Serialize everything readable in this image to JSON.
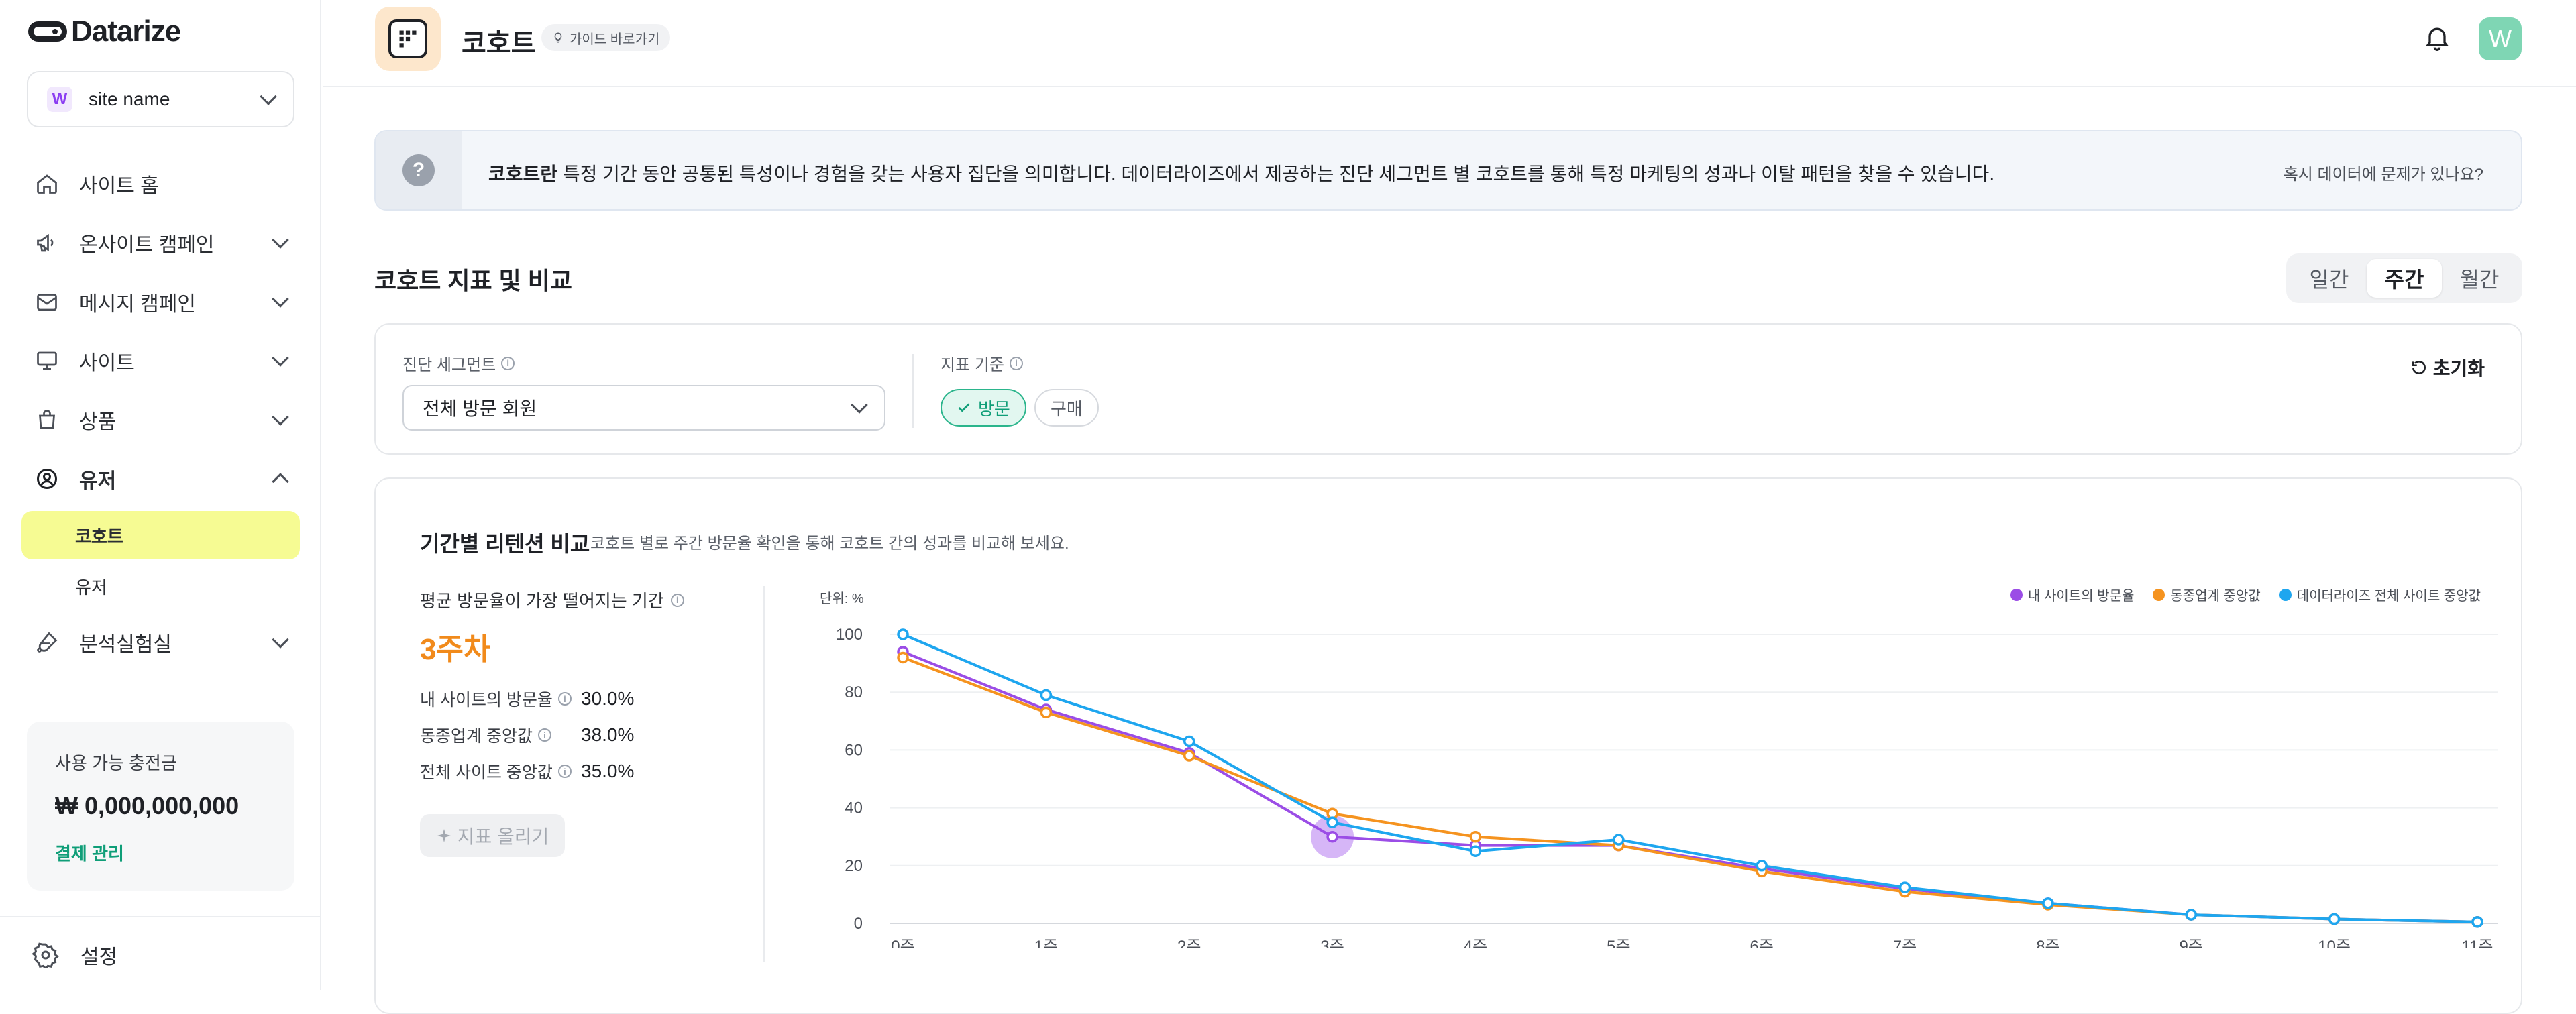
{
  "brand": {
    "name": "Datarize"
  },
  "site_select": {
    "badge": "W",
    "name": "site name"
  },
  "nav": [
    {
      "label": "사이트 홈",
      "icon": "home-icon"
    },
    {
      "label": "온사이트 캠페인",
      "icon": "megaphone-icon"
    },
    {
      "label": "메시지 캠페인",
      "icon": "mail-icon"
    },
    {
      "label": "사이트",
      "icon": "monitor-icon"
    },
    {
      "label": "상품",
      "icon": "bag-icon"
    },
    {
      "label": "유저",
      "icon": "user-circle-icon"
    },
    {
      "label": "분석실험실",
      "icon": "flask-icon"
    }
  ],
  "nav_sub": [
    {
      "label": "코호트",
      "active": true
    },
    {
      "label": "유저",
      "active": false
    }
  ],
  "credit": {
    "label": "사용 가능 충전금",
    "value": "₩ 0,000,000,000",
    "link": "결제 관리"
  },
  "settings": {
    "label": "설정"
  },
  "header": {
    "title": "코호트",
    "guide": "가이드 바로가기",
    "avatar": "W"
  },
  "banner": {
    "qmark": "?",
    "bold": "코호트란",
    "text": " 특정 기간 동안 공통된 특성이나 경험을 갖는 사용자 집단을 의미합니다. 데이터라이즈에서 제공하는 진단 세그먼트 별 코호트를 통해 특정 마케팅의 성과나 이탈 패턴을 찾을 수 있습니다.",
    "link": "혹시 데이터에 문제가 있나요?"
  },
  "section": {
    "title": "코호트 지표 및 비교",
    "tabs": [
      {
        "label": "일간",
        "active": false
      },
      {
        "label": "주간",
        "active": true
      },
      {
        "label": "월간",
        "active": false
      }
    ]
  },
  "filters": {
    "segment_label": "진단 세그먼트",
    "segment_value": "전체 방문 회원",
    "metric_label": "지표 기준",
    "chip_on": "방문",
    "chip_off": "구매",
    "reset": "초기화"
  },
  "retention": {
    "title": "기간별 리텐션 비교",
    "desc": "코호트 별로 주간 방문율 확인을 통해 코호트 간의 성과를 비교해 보세요.",
    "stat_label": "평균 방문율이 가장 떨어지는 기간",
    "stat_value": "3주차",
    "rows": [
      {
        "label": "내 사이트의 방문율",
        "value": "30.0%"
      },
      {
        "label": "동종업계 중앙값",
        "value": "38.0%"
      },
      {
        "label": "전체 사이트 중앙값",
        "value": "35.0%"
      }
    ],
    "boost_button": "지표 올리기"
  },
  "chart_data": {
    "type": "line",
    "unit_label": "단위: %",
    "categories": [
      "0주",
      "1주",
      "2주",
      "3주",
      "4주",
      "5주",
      "6주",
      "7주",
      "8주",
      "9주",
      "10주",
      "11주"
    ],
    "yticks": [
      0,
      20,
      40,
      60,
      80,
      100
    ],
    "ylim": [
      0,
      100
    ],
    "highlight_index": 3,
    "series": [
      {
        "name": "내 사이트의 방문율",
        "color": "#9b4de6",
        "values": [
          94,
          74,
          59,
          30,
          27,
          27,
          19,
          12,
          7,
          3,
          1.5,
          0.5
        ]
      },
      {
        "name": "동종업계 중앙값",
        "color": "#f5931f",
        "values": [
          92,
          73,
          58,
          38,
          30,
          27,
          18,
          11,
          6.5,
          3,
          1.5,
          0.5
        ]
      },
      {
        "name": "데이터라이즈 전체 사이트 중앙값",
        "color": "#1ea6ef",
        "values": [
          100,
          79,
          63,
          35,
          25,
          29,
          20,
          12.5,
          7,
          3,
          1.5,
          0.5
        ]
      }
    ]
  }
}
